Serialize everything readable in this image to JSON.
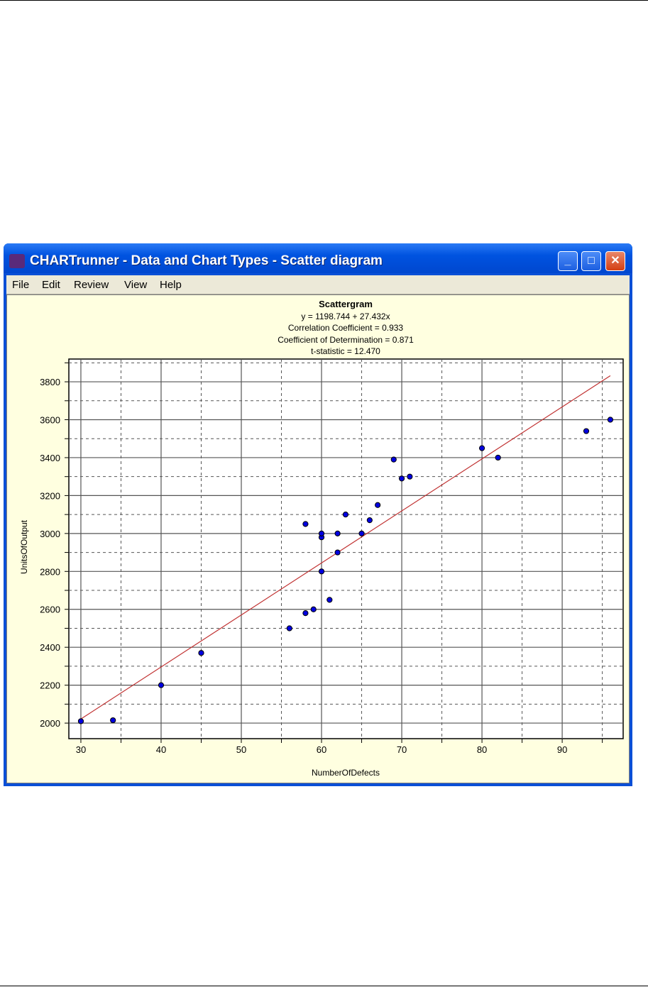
{
  "window": {
    "title": "CHARTrunner - Data and Chart Types - Scatter diagram",
    "minimize": "_",
    "maximize": "□",
    "close": "✕"
  },
  "menu": [
    "File",
    "Edit",
    "Review",
    "View",
    "Help"
  ],
  "chart_data": {
    "type": "scatter",
    "title": "Scattergram",
    "subtitle": [
      "y = 1198.744 + 27.432x",
      "Correlation Coefficient = 0.933",
      "Coefficient of Determination = 0.871",
      "t-statistic = 12.470"
    ],
    "xlabel": "NumberOfDefects",
    "ylabel": "UnitsOfOutput",
    "xlim": [
      28.5,
      97.6
    ],
    "ylim": [
      1918,
      3920
    ],
    "xticks": [
      30,
      40,
      50,
      60,
      70,
      80,
      90
    ],
    "yticks": [
      2000,
      2200,
      2400,
      2600,
      2800,
      3000,
      3200,
      3400,
      3600,
      3800
    ],
    "grid": true,
    "regression": {
      "intercept": 1198.744,
      "slope": 27.432,
      "x_from": 30,
      "x_to": 96
    },
    "points": [
      [
        30,
        2010
      ],
      [
        34,
        2015
      ],
      [
        40,
        2200
      ],
      [
        45,
        2370
      ],
      [
        56,
        2500
      ],
      [
        58,
        2580
      ],
      [
        59,
        2600
      ],
      [
        61,
        2650
      ],
      [
        60,
        2800
      ],
      [
        62,
        2900
      ],
      [
        60,
        2980
      ],
      [
        60,
        3000
      ],
      [
        62,
        3000
      ],
      [
        65,
        3000
      ],
      [
        58,
        3050
      ],
      [
        66,
        3070
      ],
      [
        63,
        3100
      ],
      [
        67,
        3150
      ],
      [
        70,
        3290
      ],
      [
        71,
        3300
      ],
      [
        69,
        3390
      ],
      [
        80,
        3450
      ],
      [
        82,
        3400
      ],
      [
        93,
        3540
      ],
      [
        96,
        3600
      ]
    ],
    "colors": {
      "point": "#0000e0",
      "line": "#c03030"
    }
  }
}
